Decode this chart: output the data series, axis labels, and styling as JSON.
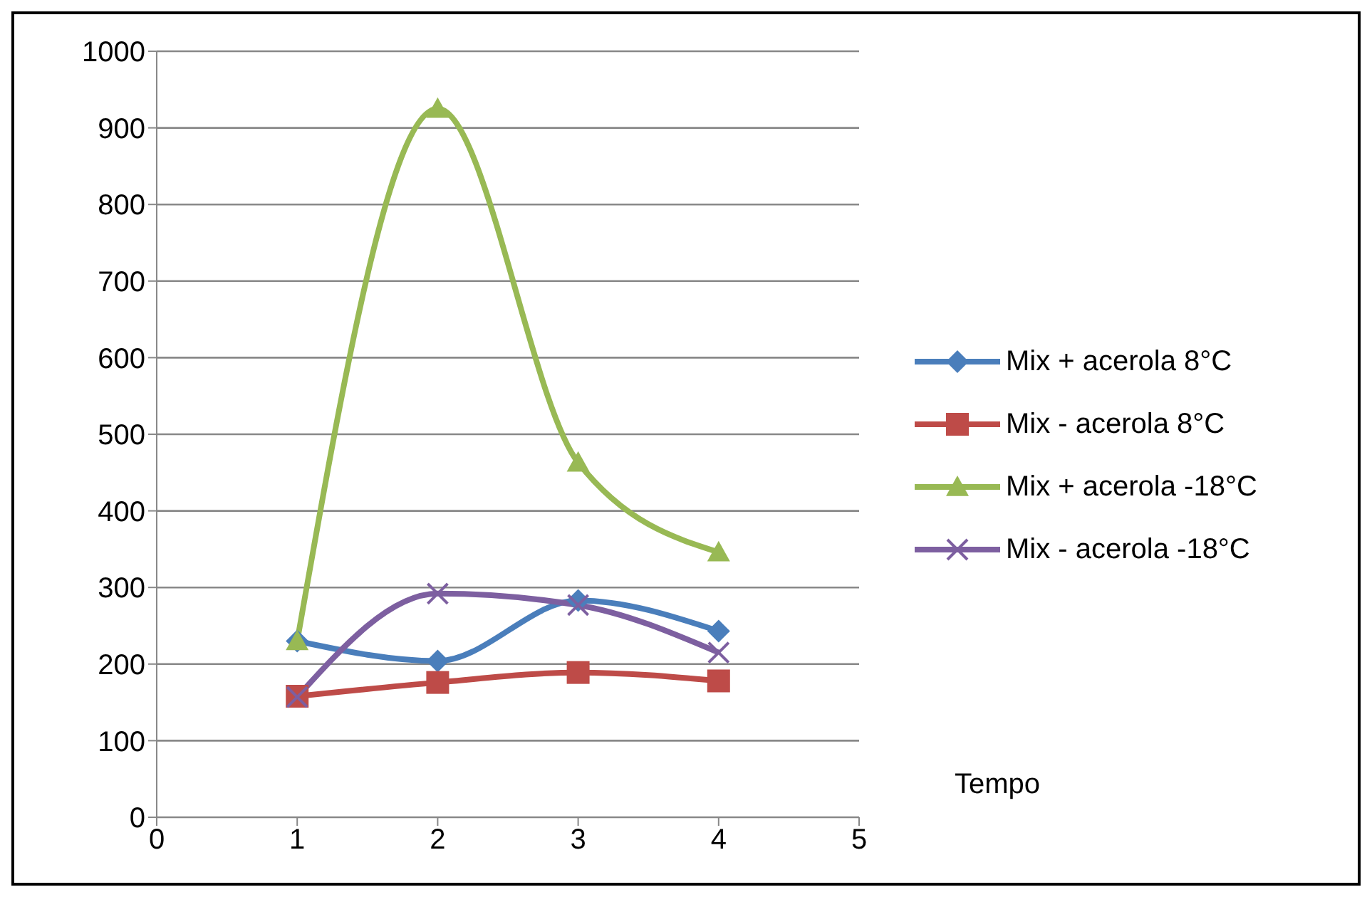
{
  "chart_data": {
    "type": "line",
    "annotations": [
      "Tempo"
    ],
    "x": [
      1,
      2,
      3,
      4
    ],
    "series": [
      {
        "name": "Mix + acerola 8°C",
        "color": "#4a7ebb",
        "marker": "diamond",
        "values": [
          230,
          204,
          283,
          243
        ]
      },
      {
        "name": "Mix - acerola 8°C",
        "color": "#be4b48",
        "marker": "square",
        "values": [
          158,
          176,
          189,
          178
        ]
      },
      {
        "name": "Mix + acerola -18°C",
        "color": "#98b954",
        "marker": "triangle",
        "values": [
          230,
          925,
          463,
          346
        ]
      },
      {
        "name": "Mix - acerola -18°C",
        "color": "#7d5fa0",
        "marker": "cross",
        "values": [
          157,
          292,
          277,
          215
        ]
      }
    ],
    "xlim": [
      0,
      5
    ],
    "xticks": [
      0,
      1,
      2,
      3,
      4,
      5
    ],
    "ylim": [
      0,
      1000
    ],
    "yticks": [
      0,
      100,
      200,
      300,
      400,
      500,
      600,
      700,
      800,
      900,
      1000
    ],
    "grid": "y",
    "legend": "right",
    "line_style": "solid"
  }
}
